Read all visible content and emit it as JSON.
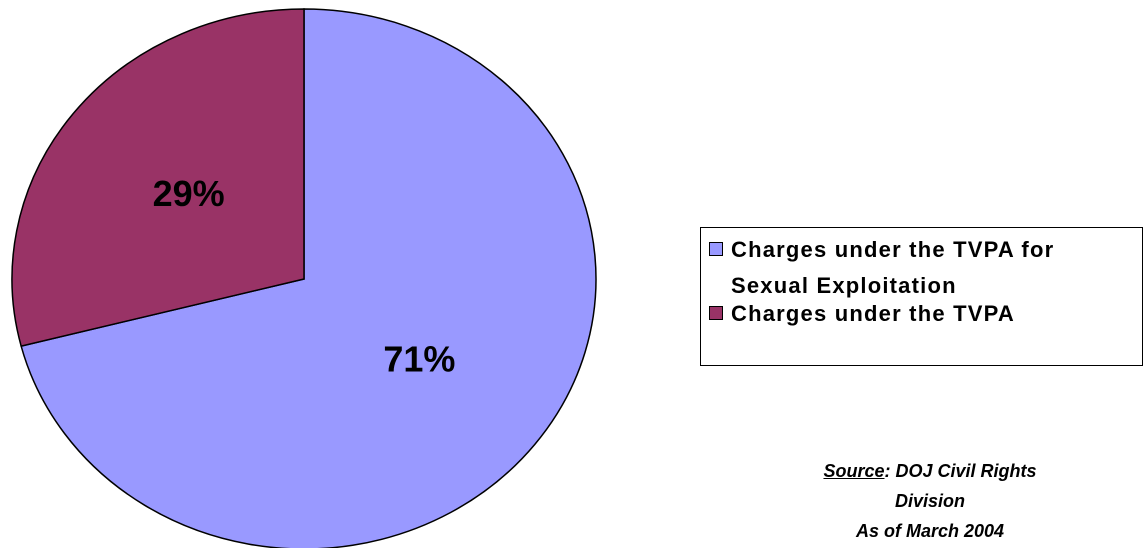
{
  "chart_data": {
    "type": "pie",
    "categories": [
      "Charges under the TVPA for Sexual Exploitation",
      "Charges under the TVPA"
    ],
    "values": [
      71,
      29
    ],
    "value_labels": [
      "71%",
      "29%"
    ],
    "colors": [
      "#9999ff",
      "#993366"
    ],
    "legend": "right",
    "source_label": "Source",
    "source_lines": [
      ":  DOJ Civil Rights",
      "Division",
      "As of March 2004"
    ]
  }
}
